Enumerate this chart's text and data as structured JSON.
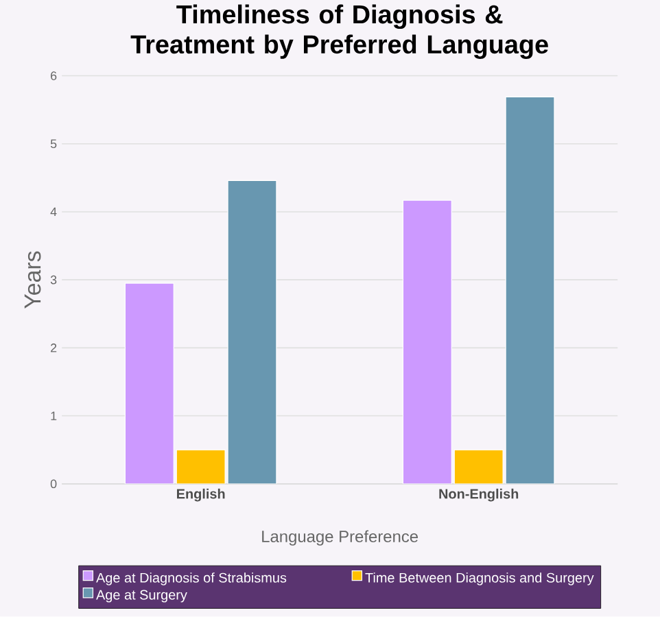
{
  "chart_data": {
    "type": "bar",
    "title": "Timeliness of Diagnosis & Treatment by Preferred Language",
    "xlabel": "Language Preference",
    "ylabel": "Years",
    "categories": [
      "English",
      "Non-English"
    ],
    "series": [
      {
        "name": "Age at Diagnosis of Strabismus",
        "color": "#cc99ff",
        "values": [
          2.95,
          4.17
        ]
      },
      {
        "name": "Time Between Diagnosis and Surgery",
        "color": "#ffc000",
        "values": [
          0.5,
          0.5
        ]
      },
      {
        "name": "Age at Surgery",
        "color": "#6897b0",
        "values": [
          4.46,
          5.69
        ]
      }
    ],
    "ylim": [
      0,
      6
    ],
    "yticks": [
      0,
      1,
      2,
      3,
      4,
      5,
      6
    ],
    "grid": "y",
    "legend": "bottom"
  }
}
